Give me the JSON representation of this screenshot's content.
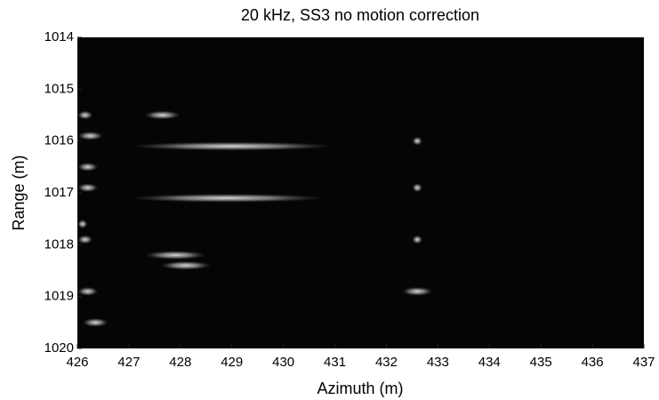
{
  "chart_data": {
    "type": "image",
    "title": "20 kHz, SS3 no motion correction",
    "x_label": "Azimuth (m)",
    "y_label": "Range (m)",
    "xlim": [
      426,
      437
    ],
    "ylim": [
      1014,
      1020
    ],
    "y_reversed": true,
    "xticks": [
      426,
      427,
      428,
      429,
      430,
      431,
      432,
      433,
      434,
      435,
      436,
      437
    ],
    "yticks": [
      1014,
      1015,
      1016,
      1017,
      1018,
      1019,
      1020
    ],
    "background": "#050505",
    "color": "#ffffff",
    "returns": {
      "range": [
        1015.5,
        1015.5,
        1015.9,
        1016.1,
        1016.0,
        1016.5,
        1016.9,
        1017.1,
        1016.9,
        1017.6,
        1017.9,
        1017.9,
        1018.2,
        1018.4,
        1018.9,
        1018.9,
        1019.5
      ],
      "azimuth_start": [
        426.0,
        427.3,
        426.0,
        427.0,
        432.5,
        426.0,
        426.0,
        427.0,
        432.5,
        426.0,
        426.0,
        432.5,
        427.3,
        427.6,
        426.0,
        432.3,
        426.1
      ],
      "azimuth_end": [
        426.3,
        428.0,
        426.5,
        431.0,
        432.7,
        426.4,
        426.4,
        430.8,
        432.7,
        426.2,
        426.3,
        432.7,
        428.5,
        428.6,
        426.4,
        432.9,
        426.6
      ]
    }
  }
}
